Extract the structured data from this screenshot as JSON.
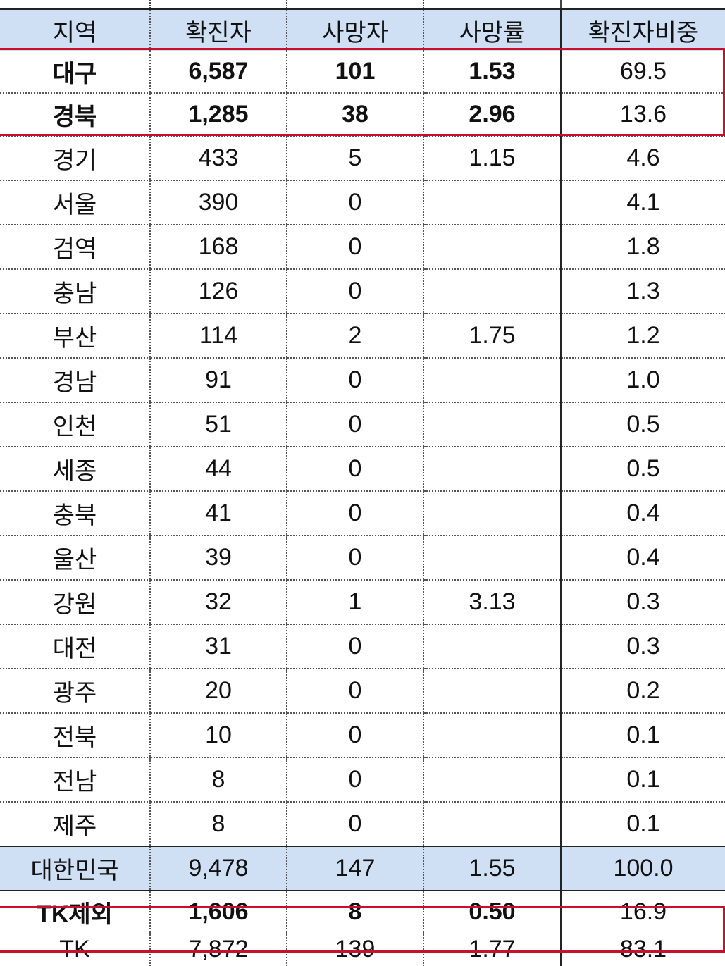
{
  "table": {
    "headers": [
      "지역",
      "확진자",
      "사망자",
      "사망률",
      "확진자비중"
    ],
    "highlighted_rows": [
      [
        "대구",
        "6,587",
        "101",
        "1.53",
        "69.5"
      ],
      [
        "경북",
        "1,285",
        "38",
        "2.96",
        "13.6"
      ]
    ],
    "rows": [
      [
        "경기",
        "433",
        "5",
        "1.15",
        "4.6"
      ],
      [
        "서울",
        "390",
        "0",
        "",
        "4.1"
      ],
      [
        "검역",
        "168",
        "0",
        "",
        "1.8"
      ],
      [
        "충남",
        "126",
        "0",
        "",
        "1.3"
      ],
      [
        "부산",
        "114",
        "2",
        "1.75",
        "1.2"
      ],
      [
        "경남",
        "91",
        "0",
        "",
        "1.0"
      ],
      [
        "인천",
        "51",
        "0",
        "",
        "0.5"
      ],
      [
        "세종",
        "44",
        "0",
        "",
        "0.5"
      ],
      [
        "충북",
        "41",
        "0",
        "",
        "0.4"
      ],
      [
        "울산",
        "39",
        "0",
        "",
        "0.4"
      ],
      [
        "강원",
        "32",
        "1",
        "3.13",
        "0.3"
      ],
      [
        "대전",
        "31",
        "0",
        "",
        "0.3"
      ],
      [
        "광주",
        "20",
        "0",
        "",
        "0.2"
      ],
      [
        "전북",
        "10",
        "0",
        "",
        "0.1"
      ],
      [
        "전남",
        "8",
        "0",
        "",
        "0.1"
      ],
      [
        "제주",
        "8",
        "0",
        "",
        "0.1"
      ]
    ],
    "total_row": [
      "대한민국",
      "9,478",
      "147",
      "1.55",
      "100.0"
    ],
    "excluding_tk_row": [
      "TK제외",
      "1,606",
      "8",
      "0.50",
      "16.9"
    ],
    "tk_row": [
      "TK",
      "7,872",
      "139",
      "1.77",
      "83.1"
    ]
  },
  "colors": {
    "header_bg": "#cfe0f4",
    "highlight_border": "#c8102e"
  }
}
